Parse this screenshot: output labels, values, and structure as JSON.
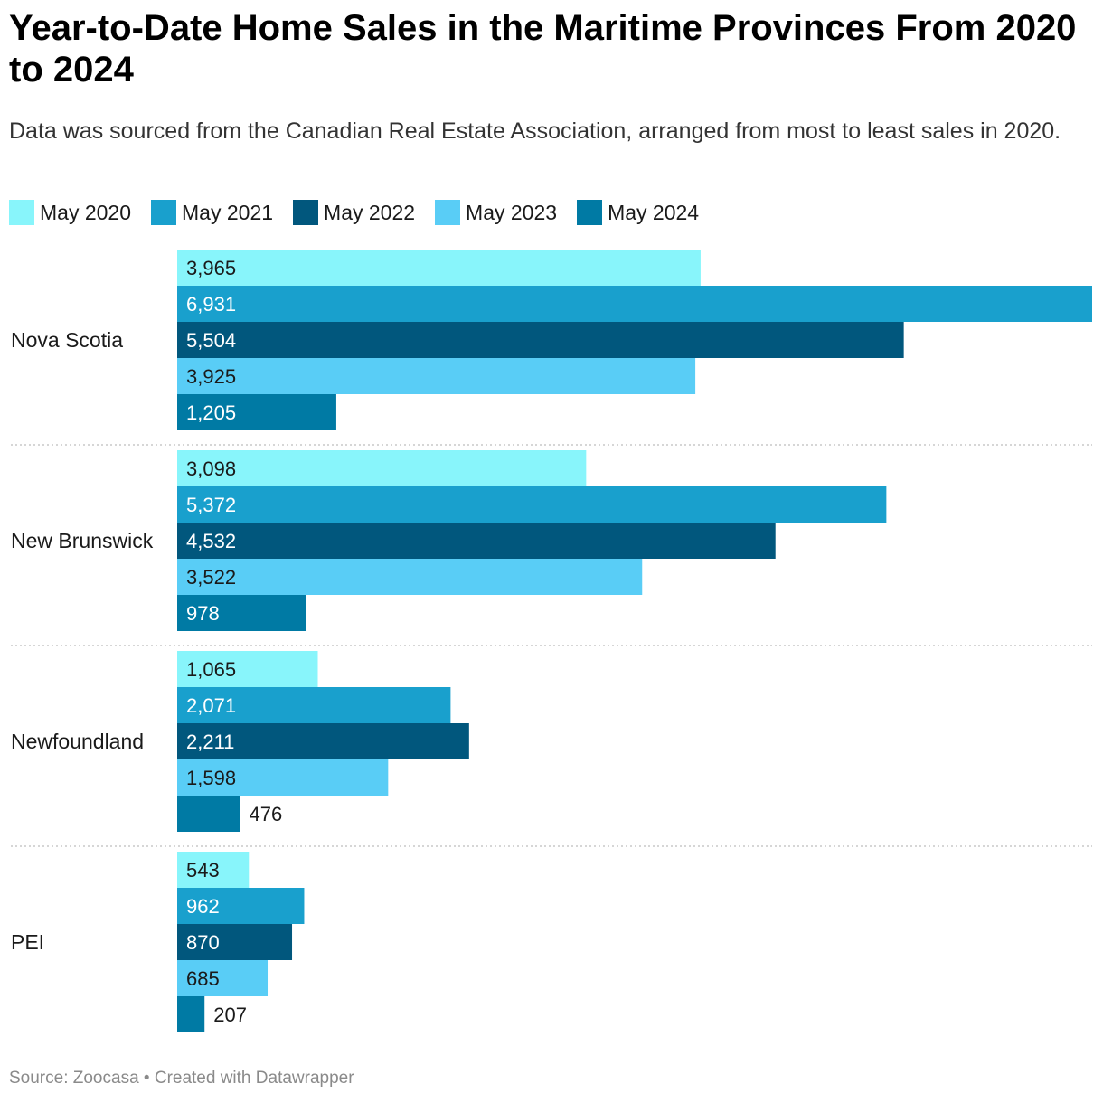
{
  "title": "Year-to-Date Home Sales in the Maritime Provinces From 2020 to 2024",
  "subtitle": "Data was sourced from the Canadian Real Estate Association, arranged from most to least sales in 2020.",
  "footer": "Source: Zoocasa • Created with Datawrapper",
  "chart_data": {
    "type": "bar",
    "orientation": "horizontal",
    "grouped": true,
    "categories": [
      "Nova Scotia",
      "New Brunswick",
      "Newfoundland",
      "PEI"
    ],
    "series": [
      {
        "name": "May 2020",
        "color": "#88f5fb",
        "values": [
          3965,
          3098,
          1065,
          543
        ],
        "labels": [
          "3,965",
          "3,098",
          "1,065",
          "543"
        ]
      },
      {
        "name": "May 2021",
        "color": "#19a0cd",
        "values": [
          6931,
          5372,
          2071,
          962
        ],
        "labels": [
          "6,931",
          "5,372",
          "2,071",
          "962"
        ]
      },
      {
        "name": "May 2022",
        "color": "#01577d",
        "values": [
          5504,
          4532,
          2211,
          870
        ],
        "labels": [
          "5,504",
          "4,532",
          "2,211",
          "870"
        ]
      },
      {
        "name": "May 2023",
        "color": "#59cdf6",
        "values": [
          3925,
          3522,
          1598,
          685
        ],
        "labels": [
          "3,925",
          "3,522",
          "1,598",
          "685"
        ]
      },
      {
        "name": "May 2024",
        "color": "#007aa4",
        "values": [
          1205,
          978,
          476,
          207
        ],
        "labels": [
          "1,205",
          "978",
          "476",
          "207"
        ]
      }
    ],
    "label_text_colors": [
      "#1a1a1a",
      "#ffffff",
      "#ffffff",
      "#1a1a1a",
      "#ffffff"
    ],
    "xlim": [
      0,
      6931
    ],
    "legend_position": "top-left",
    "grid": false
  }
}
